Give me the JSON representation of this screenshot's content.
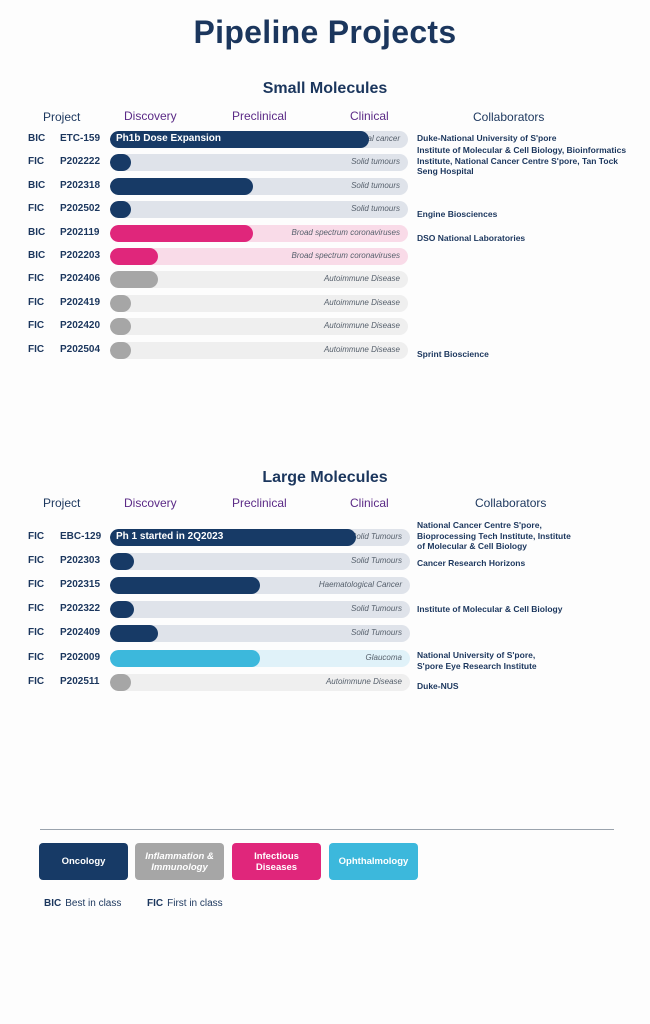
{
  "title": "Pipeline Projects",
  "colors": {
    "oncology": "#173a66",
    "oncology_track": "#dfe3ea",
    "inflammation": "#a6a6a6",
    "inflammation_track": "#efefef",
    "infectious": "#e0267b",
    "infectious_track": "#f9dbe8",
    "ophthalmology": "#3cb8dc",
    "ophthalmology_track": "#e0f2f9"
  },
  "columns": {
    "project": "Project",
    "discovery": "Discovery",
    "preclinical": "Preclinical",
    "clinical": "Clinical",
    "collaborators": "Collaborators"
  },
  "chart_data": [
    {
      "type": "bar",
      "title": "Small Molecules",
      "stages": [
        "Discovery",
        "Preclinical",
        "Clinical"
      ],
      "rows": [
        {
          "class": "BIC",
          "project": "ETC-159",
          "area": "oncology",
          "progress": 0.87,
          "bar_label": "Ph1b Dose Expansion",
          "indication": "Colorectal, Ovarian, Endometrial cancer"
        },
        {
          "class": "FIC",
          "project": "P202222",
          "area": "oncology",
          "progress": 0.07,
          "bar_label": "",
          "indication": "Solid tumours"
        },
        {
          "class": "BIC",
          "project": "P202318",
          "area": "oncology",
          "progress": 0.48,
          "bar_label": "",
          "indication": "Solid tumours"
        },
        {
          "class": "FIC",
          "project": "P202502",
          "area": "oncology",
          "progress": 0.07,
          "bar_label": "",
          "indication": "Solid tumours"
        },
        {
          "class": "BIC",
          "project": "P202119",
          "area": "infectious",
          "progress": 0.48,
          "bar_label": "",
          "indication": "Broad spectrum coronaviruses"
        },
        {
          "class": "BIC",
          "project": "P202203",
          "area": "infectious",
          "progress": 0.16,
          "bar_label": "",
          "indication": "Broad spectrum coronaviruses"
        },
        {
          "class": "FIC",
          "project": "P202406",
          "area": "inflammation",
          "progress": 0.16,
          "bar_label": "",
          "indication": "Autoimmune Disease"
        },
        {
          "class": "FIC",
          "project": "P202419",
          "area": "inflammation",
          "progress": 0.07,
          "bar_label": "",
          "indication": "Autoimmune Disease"
        },
        {
          "class": "FIC",
          "project": "P202420",
          "area": "inflammation",
          "progress": 0.07,
          "bar_label": "",
          "indication": "Autoimmune Disease"
        },
        {
          "class": "FIC",
          "project": "P202504",
          "area": "inflammation",
          "progress": 0.07,
          "bar_label": "",
          "indication": "Autoimmune Disease"
        }
      ],
      "collaborators": [
        "Duke-National University of S'pore",
        "Institute of Molecular & Cell Biology, Bioinformatics Institute, National Cancer Centre S'pore, Tan Tock Seng Hospital",
        "Engine Biosciences",
        "DSO National Laboratories",
        "Sprint Bioscience"
      ]
    },
    {
      "type": "bar",
      "title": "Large Molecules",
      "stages": [
        "Discovery",
        "Preclinical",
        "Clinical"
      ],
      "rows": [
        {
          "class": "FIC",
          "project": "EBC-129",
          "area": "oncology",
          "progress": 0.82,
          "bar_label": "Ph 1 started in 2Q2023",
          "indication": "Pan-Solid Tumours"
        },
        {
          "class": "FIC",
          "project": "P202303",
          "area": "oncology",
          "progress": 0.08,
          "bar_label": "",
          "indication": "Solid Tumours"
        },
        {
          "class": "FIC",
          "project": "P202315",
          "area": "oncology",
          "progress": 0.5,
          "bar_label": "",
          "indication": "Haematological Cancer"
        },
        {
          "class": "FIC",
          "project": "P202322",
          "area": "oncology",
          "progress": 0.08,
          "bar_label": "",
          "indication": "Solid Tumours"
        },
        {
          "class": "FIC",
          "project": "P202409",
          "area": "oncology",
          "progress": 0.16,
          "bar_label": "",
          "indication": "Solid Tumours"
        },
        {
          "class": "FIC",
          "project": "P202009",
          "area": "ophthalmology",
          "progress": 0.5,
          "bar_label": "",
          "indication": "Glaucoma"
        },
        {
          "class": "FIC",
          "project": "P202511",
          "area": "inflammation",
          "progress": 0.07,
          "bar_label": "",
          "indication": "Autoimmune Disease"
        }
      ],
      "collaborators": [
        "National Cancer Centre S'pore, Bioprocessing Tech Institute, Institute of Molecular & Cell Biology",
        "Cancer Research Horizons",
        "Institute of Molecular & Cell Biology",
        "National University of S'pore, S'pore Eye Research Institute",
        "Duke-NUS"
      ]
    }
  ],
  "legend": [
    {
      "label": "Oncology",
      "area": "oncology"
    },
    {
      "label": "Inflammation & Immunology",
      "area": "inflammation"
    },
    {
      "label": "Infectious Diseases",
      "area": "infectious"
    },
    {
      "label": "Ophthalmology",
      "area": "ophthalmology"
    }
  ],
  "key": [
    {
      "abbr": "BIC",
      "text": "Best in class"
    },
    {
      "abbr": "FIC",
      "text": "First in class"
    }
  ]
}
